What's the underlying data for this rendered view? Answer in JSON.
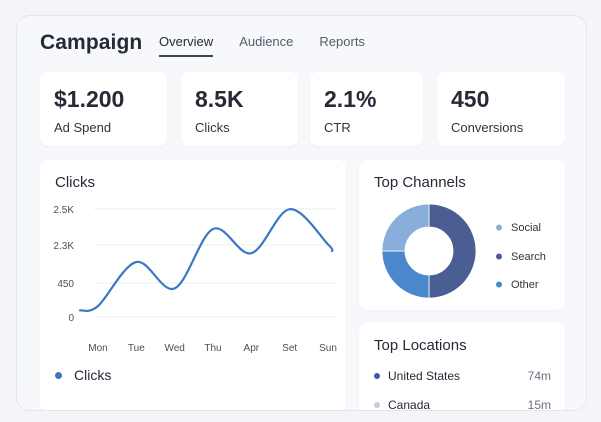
{
  "header": {
    "title": "Campaign",
    "tabs": [
      {
        "label": "Overview",
        "active": true
      },
      {
        "label": "Audience",
        "active": false
      },
      {
        "label": "Reports",
        "active": false
      }
    ]
  },
  "stats": [
    {
      "value": "$1.200",
      "label": "Ad Spend"
    },
    {
      "value": "8.5K",
      "label": "Clicks"
    },
    {
      "value": "2.1%",
      "label": "CTR"
    },
    {
      "value": "450",
      "label": "Conversions"
    }
  ],
  "clicks_card": {
    "title": "Clicks",
    "legend_label": "Clicks"
  },
  "channels_card": {
    "title": "Top Channels"
  },
  "locations_card": {
    "title": "Top Locations",
    "rows": [
      {
        "name": "United States",
        "value": "74m",
        "color": "#3d5ea6"
      },
      {
        "name": "Canada",
        "value": "15m",
        "color": "#c9ccd4"
      }
    ]
  },
  "colors": {
    "line": "#3a78c2",
    "channel_social": "#8aaedb",
    "channel_search": "#4a5e94",
    "channel_other": "#4a87cb"
  },
  "chart_data": [
    {
      "type": "line",
      "title": "Clicks",
      "categories": [
        "Mon",
        "Tue",
        "Wed",
        "Thu",
        "Apr",
        "Set",
        "Sun"
      ],
      "y_tick_labels": [
        "0",
        "450",
        "2.3K",
        "2.5K"
      ],
      "series": [
        {
          "name": "Clicks",
          "values": [
            250,
            1250,
            650,
            2000,
            1450,
            2450,
            1650
          ]
        }
      ],
      "grid": true,
      "legend_position": "bottom-left"
    },
    {
      "type": "pie",
      "title": "Top Channels",
      "donut": true,
      "slices": [
        {
          "label": "Social",
          "value": 25
        },
        {
          "label": "Search",
          "value": 50
        },
        {
          "label": "Other",
          "value": 25
        }
      ],
      "legend_position": "right"
    }
  ]
}
